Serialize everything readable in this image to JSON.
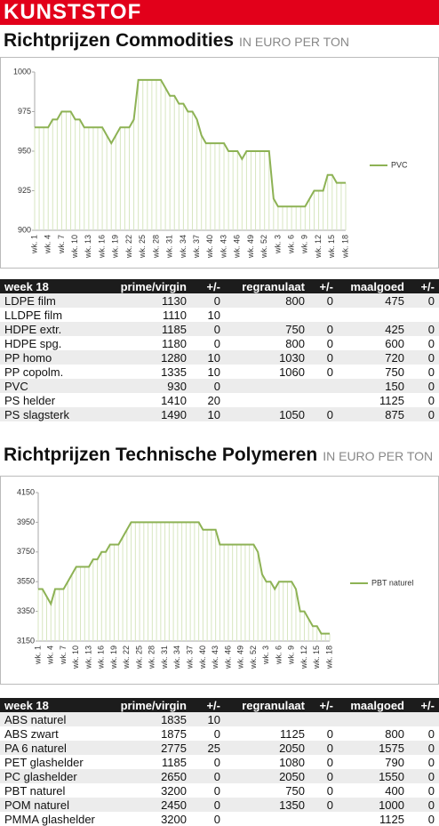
{
  "header": {
    "banner": "KUNSTSTOF"
  },
  "sections": [
    {
      "title": "Richtprijzen Commodities",
      "unit": "IN EURO PER TON"
    },
    {
      "title": "Richtprijzen Technische Polymeren",
      "unit": "IN EURO PER TON"
    }
  ],
  "chart_data": [
    {
      "type": "line",
      "categories": [
        "wk. 1",
        null,
        null,
        "wk. 4",
        null,
        null,
        "wk. 7",
        null,
        null,
        "wk. 10",
        null,
        null,
        "wk. 13",
        null,
        null,
        "wk. 16",
        null,
        null,
        "wk. 19",
        null,
        null,
        "wk. 22",
        null,
        null,
        "wk. 25",
        null,
        null,
        "wk. 28",
        null,
        null,
        "wk. 31",
        null,
        null,
        "wk. 34",
        null,
        null,
        "wk. 37",
        null,
        null,
        "wk. 40",
        null,
        null,
        "wk. 43",
        null,
        null,
        "wk. 46",
        null,
        null,
        "wk. 49",
        null,
        null,
        "wk. 52",
        null,
        null,
        "wk. 3",
        null,
        null,
        "wk. 6",
        null,
        null,
        "wk. 9",
        null,
        null,
        "wk. 12",
        null,
        null,
        "wk. 15",
        null,
        null,
        "wk. 18"
      ],
      "series": [
        {
          "name": "PVC",
          "color": "#8db254",
          "values": [
            965,
            965,
            965,
            965,
            970,
            970,
            975,
            975,
            975,
            970,
            970,
            965,
            965,
            965,
            965,
            965,
            960,
            955,
            960,
            965,
            965,
            965,
            970,
            995,
            995,
            995,
            995,
            995,
            995,
            990,
            985,
            985,
            980,
            980,
            975,
            975,
            970,
            960,
            955,
            955,
            955,
            955,
            955,
            950,
            950,
            950,
            945,
            950,
            950,
            950,
            950,
            950,
            950,
            920,
            915,
            915,
            915,
            915,
            915,
            915,
            915,
            920,
            925,
            925,
            925,
            935,
            935,
            930,
            930,
            930
          ]
        }
      ],
      "ylim": [
        900,
        1000
      ],
      "yticks": [
        900,
        925,
        950,
        975,
        1000
      ],
      "legend": "right"
    },
    {
      "type": "line",
      "categories": [
        "wk. 1",
        null,
        null,
        "wk. 4",
        null,
        null,
        "wk. 7",
        null,
        null,
        "wk. 10",
        null,
        null,
        "wk. 13",
        null,
        null,
        "wk. 16",
        null,
        null,
        "wk. 19",
        null,
        null,
        "wk. 22",
        null,
        null,
        "wk. 25",
        null,
        null,
        "wk. 28",
        null,
        null,
        "wk. 31",
        null,
        null,
        "wk. 34",
        null,
        null,
        "wk. 37",
        null,
        null,
        "wk. 40",
        null,
        null,
        "wk. 43",
        null,
        null,
        "wk. 46",
        null,
        null,
        "wk. 49",
        null,
        null,
        "wk. 52",
        null,
        null,
        "wk. 3",
        null,
        null,
        "wk. 6",
        null,
        null,
        "wk. 9",
        null,
        null,
        "wk. 12",
        null,
        null,
        "wk. 15",
        null,
        null,
        "wk. 18"
      ],
      "series": [
        {
          "name": "PBT naturel",
          "color": "#8db254",
          "values": [
            3500,
            3500,
            3450,
            3400,
            3500,
            3500,
            3500,
            3550,
            3600,
            3650,
            3650,
            3650,
            3650,
            3700,
            3700,
            3750,
            3750,
            3800,
            3800,
            3800,
            3850,
            3900,
            3950,
            3950,
            3950,
            3950,
            3950,
            3950,
            3950,
            3950,
            3950,
            3950,
            3950,
            3950,
            3950,
            3950,
            3950,
            3950,
            3950,
            3900,
            3900,
            3900,
            3900,
            3800,
            3800,
            3800,
            3800,
            3800,
            3800,
            3800,
            3800,
            3800,
            3750,
            3600,
            3550,
            3550,
            3500,
            3550,
            3550,
            3550,
            3550,
            3500,
            3350,
            3350,
            3300,
            3250,
            3250,
            3200,
            3200,
            3200
          ]
        }
      ],
      "ylim": [
        3150,
        4150
      ],
      "yticks": [
        3150,
        3350,
        3550,
        3750,
        3950,
        4150
      ],
      "legend": "right"
    }
  ],
  "tables": [
    {
      "header": [
        "week 18",
        "prime/virgin",
        "+/-",
        "regranulaat",
        "+/-",
        "maalgoed",
        "+/-"
      ],
      "rows": [
        [
          "LDPE film",
          1130,
          0,
          800,
          0,
          475,
          0
        ],
        [
          "LLDPE film",
          1110,
          10,
          null,
          null,
          null,
          null
        ],
        [
          "HDPE extr.",
          1185,
          0,
          750,
          0,
          425,
          0
        ],
        [
          "HDPE spg.",
          1180,
          0,
          800,
          0,
          600,
          0
        ],
        [
          "PP homo",
          1280,
          10,
          1030,
          0,
          720,
          0
        ],
        [
          "PP copolm.",
          1335,
          10,
          1060,
          0,
          750,
          0
        ],
        [
          "PVC",
          930,
          0,
          null,
          null,
          150,
          0
        ],
        [
          "PS helder",
          1410,
          20,
          null,
          null,
          1125,
          0
        ],
        [
          "PS slagsterk",
          1490,
          10,
          1050,
          0,
          875,
          0
        ]
      ]
    },
    {
      "header": [
        "week 18",
        "prime/virgin",
        "+/-",
        "regranulaat",
        "+/-",
        "maalgoed",
        "+/-"
      ],
      "rows": [
        [
          "ABS naturel",
          1835,
          10,
          null,
          null,
          null,
          null
        ],
        [
          "ABS zwart",
          1875,
          0,
          1125,
          0,
          800,
          0
        ],
        [
          "PA 6 naturel",
          2775,
          25,
          2050,
          0,
          1575,
          0
        ],
        [
          "PET glashelder",
          1185,
          0,
          1080,
          0,
          790,
          0
        ],
        [
          "PC glashelder",
          2650,
          0,
          2050,
          0,
          1550,
          0
        ],
        [
          "PBT naturel",
          3200,
          0,
          750,
          0,
          400,
          0
        ],
        [
          "POM naturel",
          2450,
          0,
          1350,
          0,
          1000,
          0
        ],
        [
          "PMMA glashelder",
          3200,
          0,
          null,
          null,
          1125,
          0
        ]
      ]
    }
  ]
}
